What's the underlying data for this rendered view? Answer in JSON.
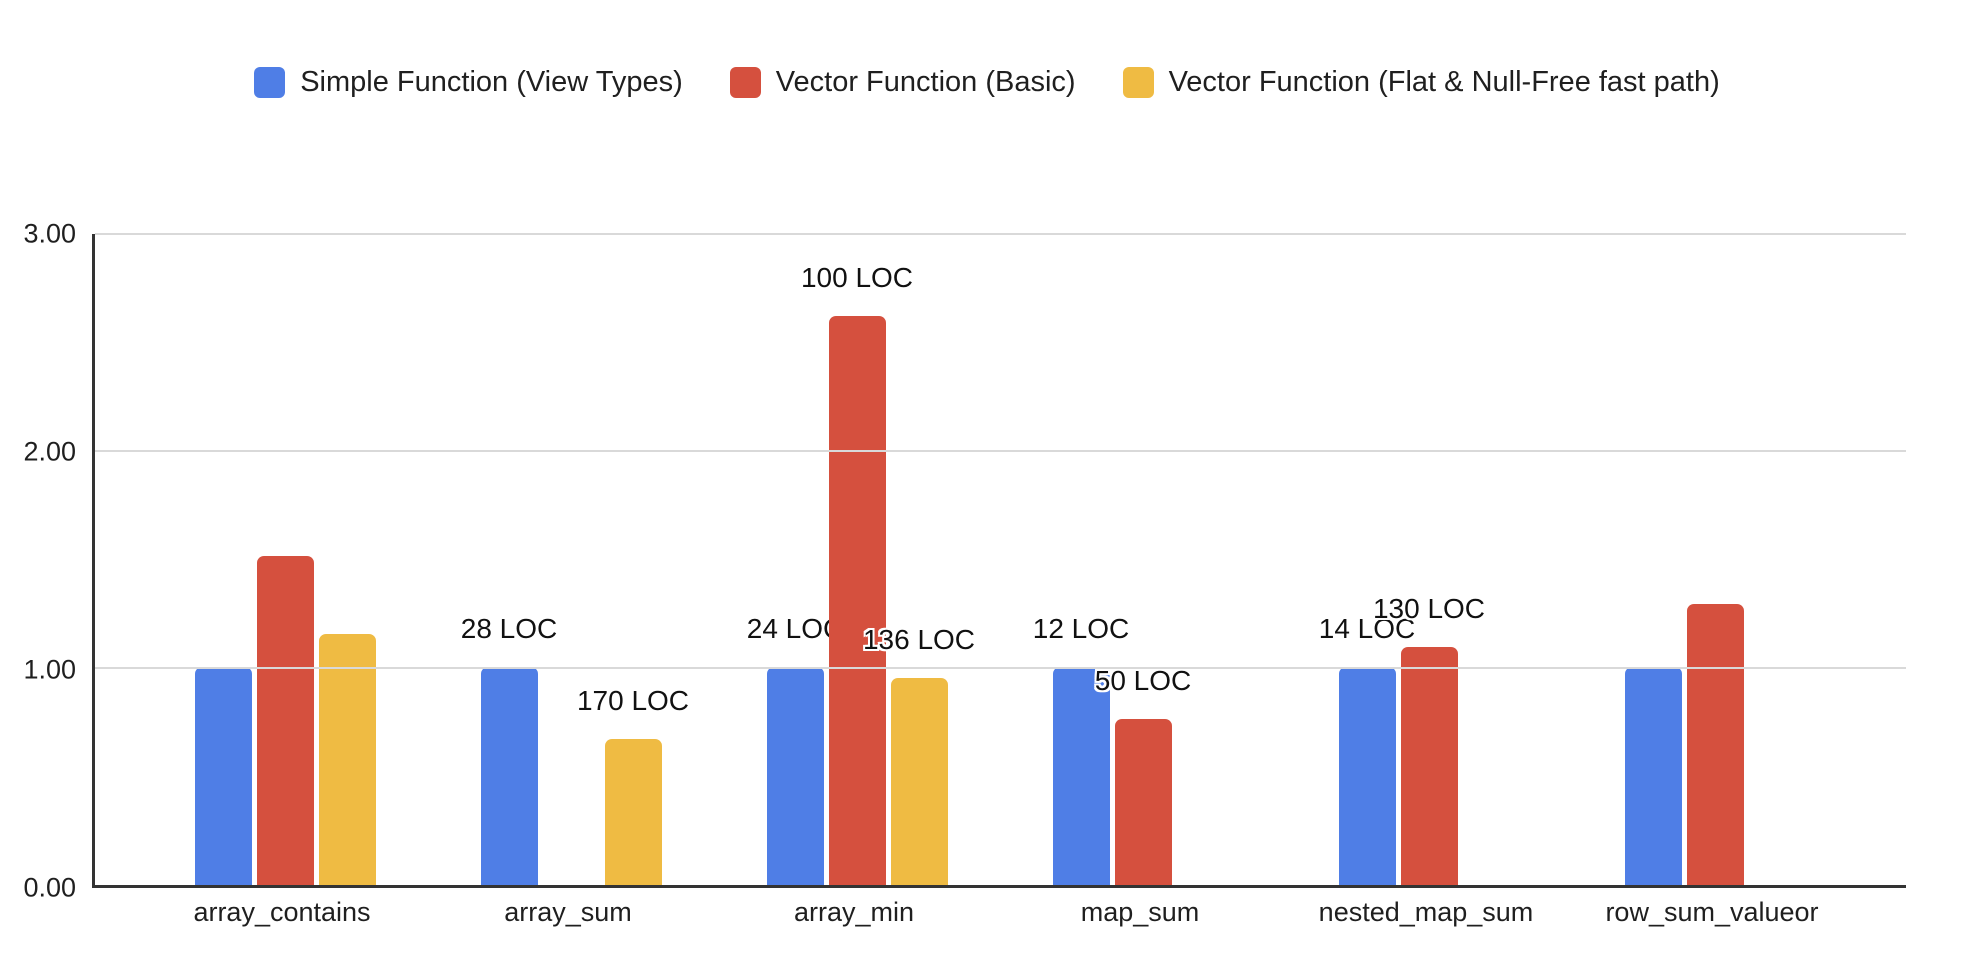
{
  "chart_data": {
    "type": "bar",
    "categories": [
      "array_contains",
      "array_sum",
      "array_min",
      "map_sum",
      "nested_map_sum",
      "row_sum_valueor"
    ],
    "series": [
      {
        "name": "Simple Function (View Types)",
        "color": "#4f7ee6",
        "values": [
          1.0,
          1.0,
          1.0,
          1.0,
          1.0,
          1.0
        ],
        "point_labels": [
          "",
          "28 LOC",
          "24 LOC",
          "12 LOC",
          "14 LOC",
          ""
        ]
      },
      {
        "name": "Vector Function (Basic)",
        "color": "#d5503e",
        "values": [
          1.51,
          null,
          2.61,
          0.76,
          1.09,
          1.29
        ],
        "point_labels": [
          "",
          "",
          "100 LOC",
          "50 LOC",
          "130 LOC",
          ""
        ]
      },
      {
        "name": "Vector Function (Flat & Null-Free fast path)",
        "color": "#efbb43",
        "values": [
          1.15,
          0.67,
          0.95,
          null,
          null,
          null
        ],
        "point_labels": [
          "",
          "170 LOC",
          "136 LOC",
          "",
          "",
          ""
        ]
      }
    ],
    "yticks": [
      "0.00",
      "1.00",
      "2.00",
      "3.00"
    ],
    "ylim": [
      0,
      3
    ],
    "grid": true,
    "legend_position": "top",
    "colors": {
      "gridline": "#d9d9d9",
      "axis": "#333333",
      "text": "#1f1f1f",
      "data_label_text": "#111111",
      "background": "#ffffff"
    }
  }
}
